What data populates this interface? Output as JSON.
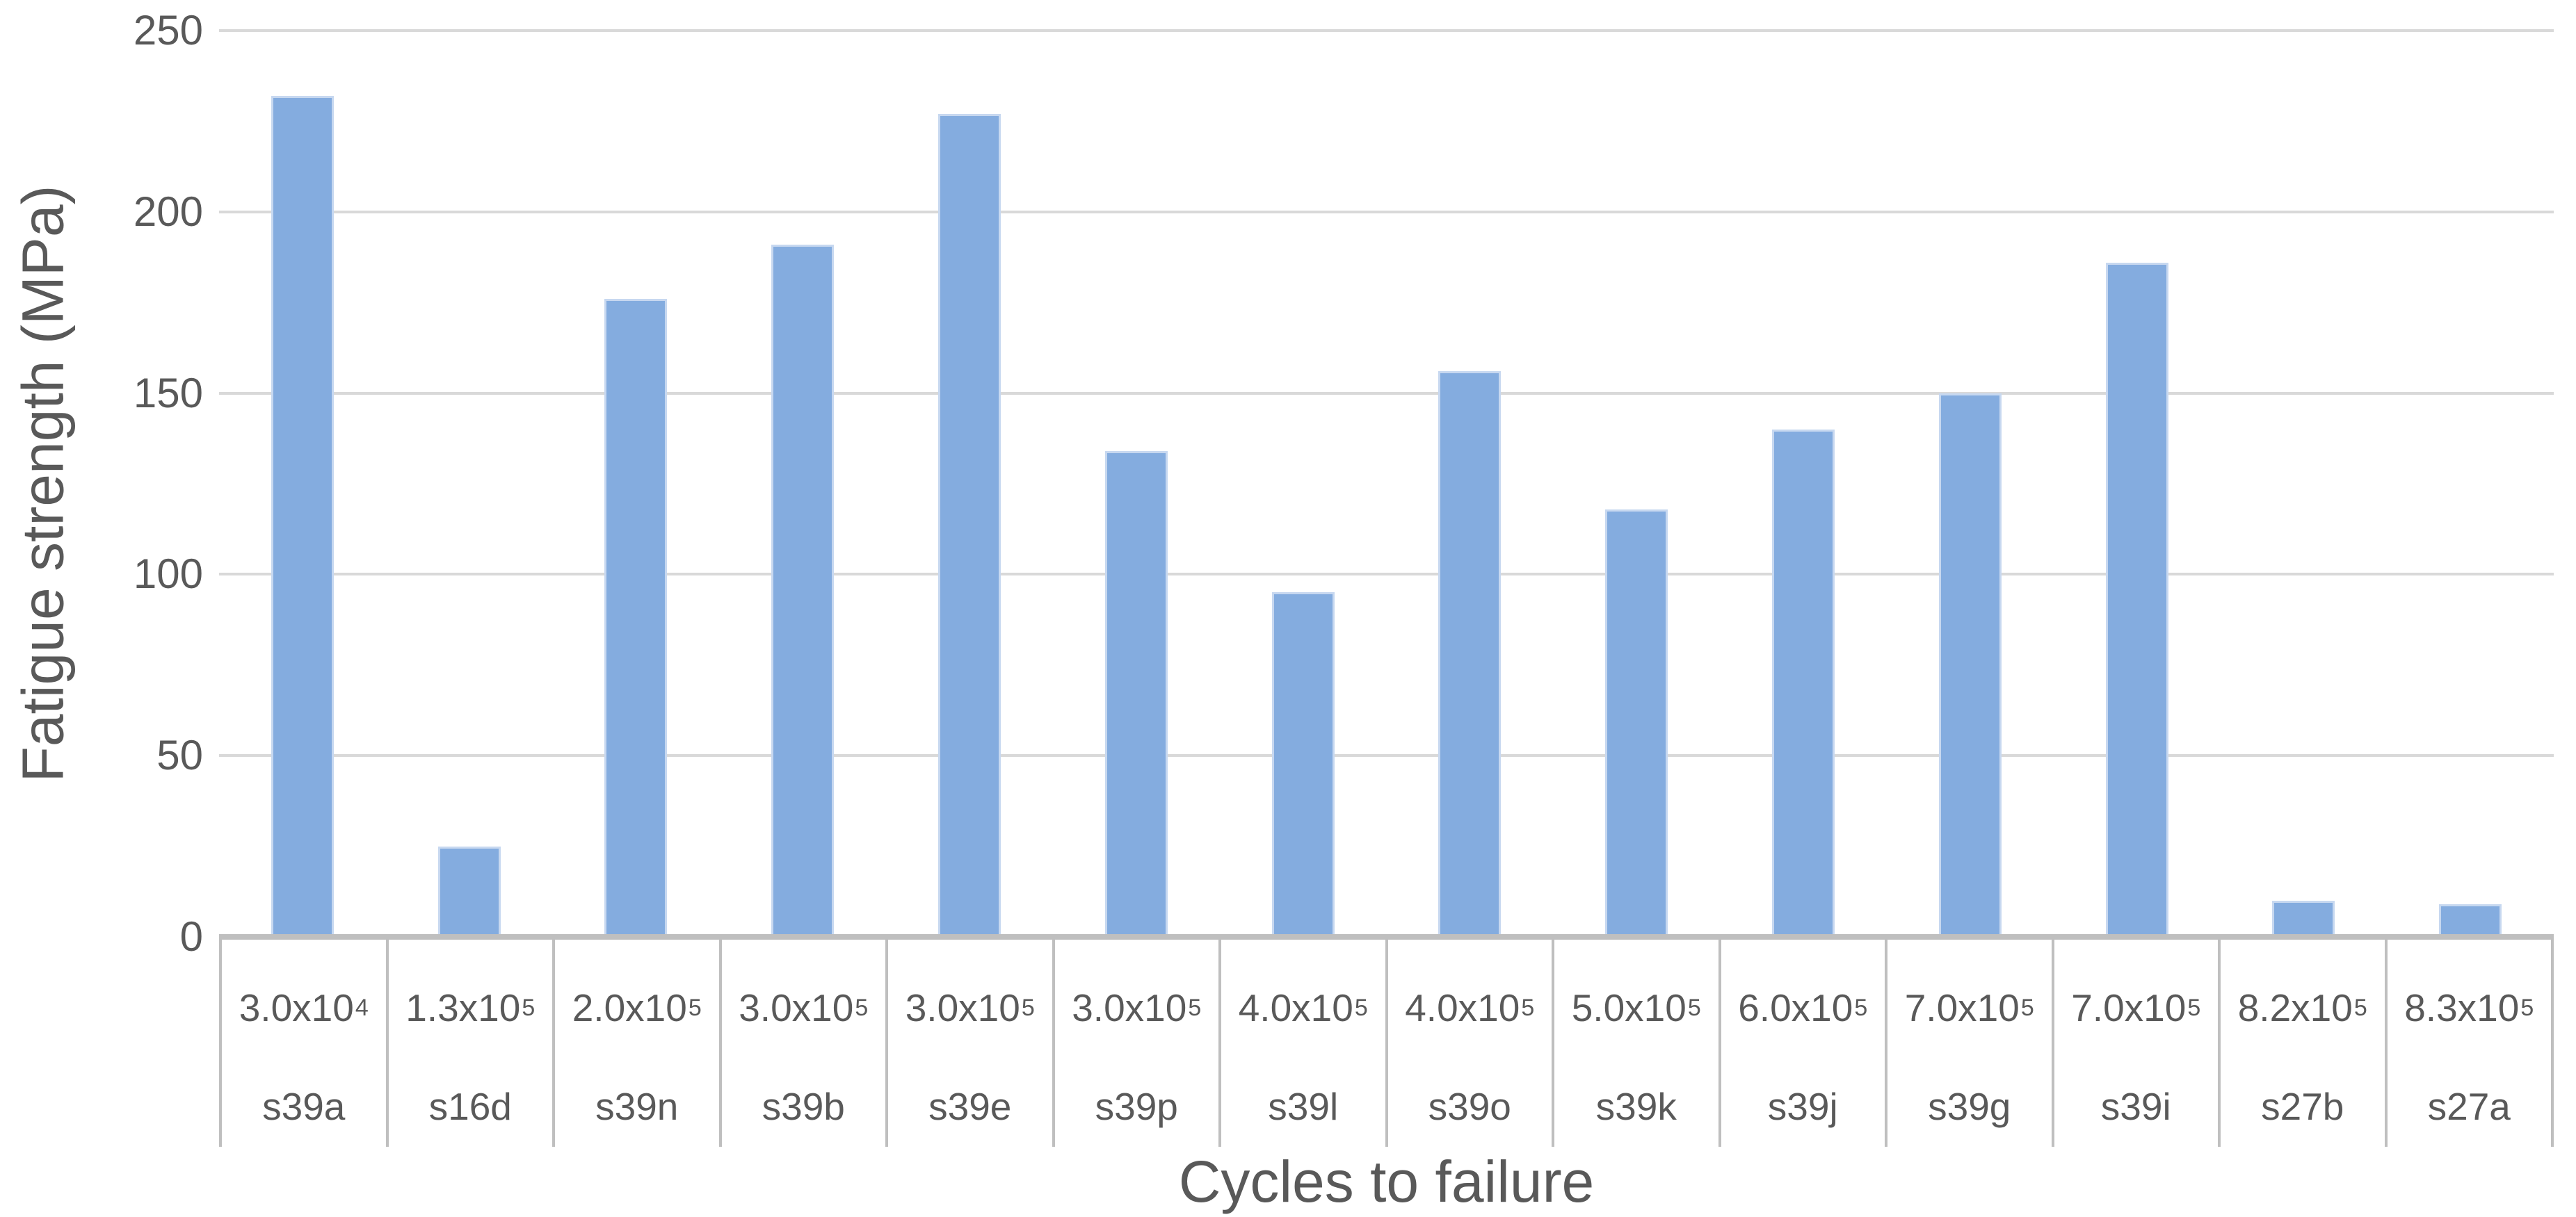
{
  "chart_data": {
    "type": "bar",
    "title": "",
    "xlabel": "Cycles to failure",
    "ylabel": "Fatigue strength (MPa)",
    "ylim": [
      0,
      250
    ],
    "yticks": [
      0,
      50,
      100,
      150,
      200,
      250
    ],
    "grid": true,
    "legend": "none",
    "bar_color": "#84ACDF",
    "bar_border_color": "#C7D8F0",
    "points": [
      {
        "cycles": "3.0x10^4",
        "cycles_mantissa": "3.0x10",
        "cycles_exponent": "4",
        "specimen": "s39a",
        "value": 232
      },
      {
        "cycles": "1.3x10^5",
        "cycles_mantissa": "1.3x10",
        "cycles_exponent": "5",
        "specimen": "s16d",
        "value": 25
      },
      {
        "cycles": "2.0x10^5",
        "cycles_mantissa": "2.0x10",
        "cycles_exponent": "5",
        "specimen": "s39n",
        "value": 176
      },
      {
        "cycles": "3.0x10^5",
        "cycles_mantissa": "3.0x10",
        "cycles_exponent": "5",
        "specimen": "s39b",
        "value": 191
      },
      {
        "cycles": "3.0x10^5",
        "cycles_mantissa": "3.0x10",
        "cycles_exponent": "5",
        "specimen": "s39e",
        "value": 227
      },
      {
        "cycles": "3.0x10^5",
        "cycles_mantissa": "3.0x10",
        "cycles_exponent": "5",
        "specimen": "s39p",
        "value": 134
      },
      {
        "cycles": "4.0x10^5",
        "cycles_mantissa": "4.0x10",
        "cycles_exponent": "5",
        "specimen": "s39l",
        "value": 95
      },
      {
        "cycles": "4.0x10^5",
        "cycles_mantissa": "4.0x10",
        "cycles_exponent": "5",
        "specimen": "s39o",
        "value": 156
      },
      {
        "cycles": "5.0x10^5",
        "cycles_mantissa": "5.0x10",
        "cycles_exponent": "5",
        "specimen": "s39k",
        "value": 118
      },
      {
        "cycles": "6.0x10^5",
        "cycles_mantissa": "6.0x10",
        "cycles_exponent": "5",
        "specimen": "s39j",
        "value": 140
      },
      {
        "cycles": "7.0x10^5",
        "cycles_mantissa": "7.0x10",
        "cycles_exponent": "5",
        "specimen": "s39g",
        "value": 150
      },
      {
        "cycles": "7.0x10^5",
        "cycles_mantissa": "7.0x10",
        "cycles_exponent": "5",
        "specimen": "s39i",
        "value": 186
      },
      {
        "cycles": "8.2x10^5",
        "cycles_mantissa": "8.2x10",
        "cycles_exponent": "5",
        "specimen": "s27b",
        "value": 10
      },
      {
        "cycles": "8.3x10^5",
        "cycles_mantissa": "8.3x10",
        "cycles_exponent": "5",
        "specimen": "s27a",
        "value": 9
      }
    ]
  },
  "colors": {
    "background": "#FFFFFF",
    "bar_fill": "#84ACDF",
    "bar_border": "#C7D8F0",
    "gridline": "#D9D9D9",
    "axis_line": "#BFBFBF",
    "separator": "#BFBFBF",
    "text": "#595959"
  }
}
